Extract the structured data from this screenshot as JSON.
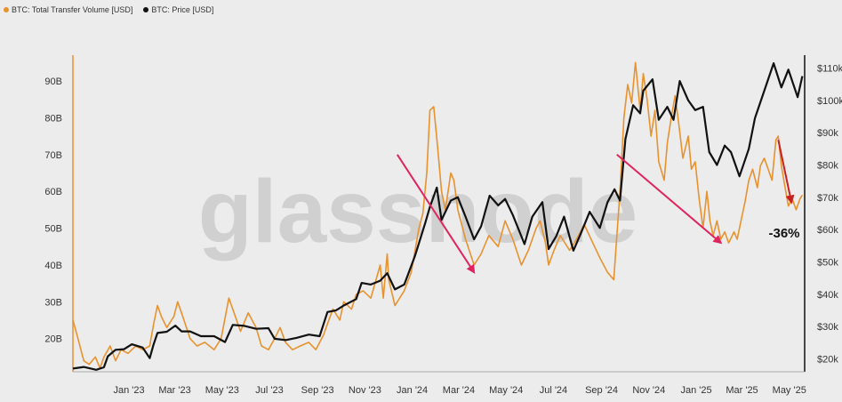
{
  "legend": {
    "volume_label": "BTC: Total Transfer Volume [USD]",
    "price_label": "BTC: Price [USD]"
  },
  "watermark": "glassnode",
  "annotation": "-36%",
  "colors": {
    "volume": "#e8922e",
    "price": "#111111",
    "arrow": "#e0245e",
    "arrow_dark": "#c8201e",
    "left_axis": "#e8922e",
    "right_axis": "#111111"
  },
  "chart_data": {
    "type": "line",
    "title": "",
    "grid": false,
    "legend_position": "top-left",
    "x_ticks": [
      "Jan '23",
      "Mar '23",
      "May '23",
      "Jul '23",
      "Sep '23",
      "Nov '23",
      "Jan '24",
      "Mar '24",
      "May '24",
      "Jul '24",
      "Sep '24",
      "Nov '24",
      "Jan '25",
      "Mar '25",
      "May '25"
    ],
    "x_range": [
      "2022-12-01",
      "2025-07-01"
    ],
    "y_left": {
      "unit": "USD",
      "ticks": [
        "20B",
        "30B",
        "40B",
        "50B",
        "60B",
        "70B",
        "80B",
        "90B"
      ],
      "tick_values": [
        20,
        30,
        40,
        50,
        60,
        70,
        80,
        90
      ],
      "range": [
        11,
        97
      ]
    },
    "y_right": {
      "unit": "USD",
      "ticks": [
        "$20k",
        "$30k",
        "$40k",
        "$50k",
        "$60k",
        "$70k",
        "$80k",
        "$90k",
        "$100k",
        "$110k"
      ],
      "tick_values": [
        20,
        30,
        40,
        50,
        60,
        70,
        80,
        90,
        100,
        110
      ],
      "range": [
        16,
        114
      ]
    },
    "series": [
      {
        "name": "BTC: Total Transfer Volume [USD]",
        "axis": "left",
        "unit": "billions",
        "points": [
          [
            "2022-12-01",
            25
          ],
          [
            "2022-12-05",
            22
          ],
          [
            "2022-12-10",
            18
          ],
          [
            "2022-12-15",
            14
          ],
          [
            "2022-12-22",
            13
          ],
          [
            "2022-12-30",
            15
          ],
          [
            "2023-01-05",
            12
          ],
          [
            "2023-01-10",
            15
          ],
          [
            "2023-01-18",
            18
          ],
          [
            "2023-01-25",
            14
          ],
          [
            "2023-02-01",
            17
          ],
          [
            "2023-02-10",
            16
          ],
          [
            "2023-02-20",
            18
          ],
          [
            "2023-03-01",
            17
          ],
          [
            "2023-03-10",
            18
          ],
          [
            "2023-03-15",
            24
          ],
          [
            "2023-03-20",
            29
          ],
          [
            "2023-03-25",
            26
          ],
          [
            "2023-04-01",
            23
          ],
          [
            "2023-04-10",
            26
          ],
          [
            "2023-04-15",
            30
          ],
          [
            "2023-04-20",
            27
          ],
          [
            "2023-05-01",
            20
          ],
          [
            "2023-05-10",
            18
          ],
          [
            "2023-05-20",
            19
          ],
          [
            "2023-06-01",
            17
          ],
          [
            "2023-06-10",
            20
          ],
          [
            "2023-06-20",
            31
          ],
          [
            "2023-06-25",
            28
          ],
          [
            "2023-07-05",
            22
          ],
          [
            "2023-07-15",
            27
          ],
          [
            "2023-07-25",
            23
          ],
          [
            "2023-08-01",
            18
          ],
          [
            "2023-08-10",
            17
          ],
          [
            "2023-08-18",
            20
          ],
          [
            "2023-08-25",
            23
          ],
          [
            "2023-09-01",
            19
          ],
          [
            "2023-09-10",
            17
          ],
          [
            "2023-09-20",
            18
          ],
          [
            "2023-10-01",
            19
          ],
          [
            "2023-10-10",
            17
          ],
          [
            "2023-10-20",
            21
          ],
          [
            "2023-10-25",
            24
          ],
          [
            "2023-11-01",
            28
          ],
          [
            "2023-11-10",
            25
          ],
          [
            "2023-11-15",
            30
          ],
          [
            "2023-11-25",
            28
          ],
          [
            "2023-12-01",
            32
          ],
          [
            "2023-12-10",
            33
          ],
          [
            "2023-12-20",
            31
          ],
          [
            "2024-01-01",
            40
          ],
          [
            "2024-01-05",
            31
          ],
          [
            "2024-01-10",
            43
          ],
          [
            "2024-01-12",
            36
          ],
          [
            "2024-01-20",
            29
          ],
          [
            "2024-02-01",
            33
          ],
          [
            "2024-02-10",
            38
          ],
          [
            "2024-02-20",
            50
          ],
          [
            "2024-02-25",
            54
          ],
          [
            "2024-03-01",
            65
          ],
          [
            "2024-03-05",
            82
          ],
          [
            "2024-03-10",
            83
          ],
          [
            "2024-03-15",
            72
          ],
          [
            "2024-03-20",
            60
          ],
          [
            "2024-03-25",
            55
          ],
          [
            "2024-04-01",
            65
          ],
          [
            "2024-04-05",
            63
          ],
          [
            "2024-04-10",
            55
          ],
          [
            "2024-04-20",
            47
          ],
          [
            "2024-05-01",
            40
          ],
          [
            "2024-05-10",
            43
          ],
          [
            "2024-05-20",
            48
          ],
          [
            "2024-06-01",
            45
          ],
          [
            "2024-06-10",
            52
          ],
          [
            "2024-06-20",
            47
          ],
          [
            "2024-07-01",
            40
          ],
          [
            "2024-07-10",
            44
          ],
          [
            "2024-07-20",
            50
          ],
          [
            "2024-07-25",
            52
          ],
          [
            "2024-08-01",
            46
          ],
          [
            "2024-08-05",
            40
          ],
          [
            "2024-08-12",
            44
          ],
          [
            "2024-08-20",
            48
          ],
          [
            "2024-09-01",
            44
          ],
          [
            "2024-09-10",
            47
          ],
          [
            "2024-09-20",
            51
          ],
          [
            "2024-10-01",
            46
          ],
          [
            "2024-10-10",
            42
          ],
          [
            "2024-10-20",
            38
          ],
          [
            "2024-10-28",
            36
          ],
          [
            "2024-11-05",
            60
          ],
          [
            "2024-11-10",
            80
          ],
          [
            "2024-11-15",
            89
          ],
          [
            "2024-11-20",
            84
          ],
          [
            "2024-11-25",
            95
          ],
          [
            "2024-12-01",
            82
          ],
          [
            "2024-12-05",
            92
          ],
          [
            "2024-12-10",
            85
          ],
          [
            "2024-12-15",
            75
          ],
          [
            "2024-12-20",
            82
          ],
          [
            "2024-12-25",
            68
          ],
          [
            "2025-01-01",
            63
          ],
          [
            "2025-01-05",
            73
          ],
          [
            "2025-01-10",
            80
          ],
          [
            "2025-01-15",
            86
          ],
          [
            "2025-01-20",
            78
          ],
          [
            "2025-01-25",
            69
          ],
          [
            "2025-02-01",
            75
          ],
          [
            "2025-02-05",
            66
          ],
          [
            "2025-02-10",
            68
          ],
          [
            "2025-02-15",
            58
          ],
          [
            "2025-02-20",
            50
          ],
          [
            "2025-02-25",
            60
          ],
          [
            "2025-03-01",
            52
          ],
          [
            "2025-03-05",
            48
          ],
          [
            "2025-03-10",
            52
          ],
          [
            "2025-03-15",
            47
          ],
          [
            "2025-03-20",
            49
          ],
          [
            "2025-03-25",
            46
          ],
          [
            "2025-04-01",
            49
          ],
          [
            "2025-04-05",
            47
          ],
          [
            "2025-04-10",
            52
          ],
          [
            "2025-04-15",
            57
          ],
          [
            "2025-04-20",
            63
          ],
          [
            "2025-04-25",
            66
          ],
          [
            "2025-05-01",
            61
          ],
          [
            "2025-05-05",
            67
          ],
          [
            "2025-05-10",
            69
          ],
          [
            "2025-05-15",
            66
          ],
          [
            "2025-05-20",
            63
          ],
          [
            "2025-05-25",
            74
          ],
          [
            "2025-05-28",
            75
          ],
          [
            "2025-06-01",
            67
          ],
          [
            "2025-06-05",
            62
          ],
          [
            "2025-06-10",
            56
          ],
          [
            "2025-06-15",
            58
          ],
          [
            "2025-06-20",
            55
          ],
          [
            "2025-06-25",
            58
          ],
          [
            "2025-06-28",
            59
          ]
        ]
      },
      {
        "name": "BTC: Price [USD]",
        "axis": "right",
        "unit": "thousands",
        "points": [
          [
            "2022-12-01",
            17
          ],
          [
            "2022-12-15",
            17.5
          ],
          [
            "2022-12-31",
            16.6
          ],
          [
            "2023-01-10",
            17.4
          ],
          [
            "2023-01-15",
            20.8
          ],
          [
            "2023-01-25",
            22.8
          ],
          [
            "2023-02-05",
            23
          ],
          [
            "2023-02-15",
            24.5
          ],
          [
            "2023-03-01",
            23.5
          ],
          [
            "2023-03-10",
            20.2
          ],
          [
            "2023-03-15",
            24.5
          ],
          [
            "2023-03-20",
            28
          ],
          [
            "2023-04-01",
            28.4
          ],
          [
            "2023-04-12",
            30.3
          ],
          [
            "2023-04-20",
            28.5
          ],
          [
            "2023-05-01",
            28.5
          ],
          [
            "2023-05-15",
            27
          ],
          [
            "2023-06-01",
            27
          ],
          [
            "2023-06-15",
            25.2
          ],
          [
            "2023-06-25",
            30.5
          ],
          [
            "2023-07-10",
            30.2
          ],
          [
            "2023-07-25",
            29.3
          ],
          [
            "2023-08-10",
            29.5
          ],
          [
            "2023-08-18",
            26.2
          ],
          [
            "2023-09-01",
            25.8
          ],
          [
            "2023-09-15",
            26.5
          ],
          [
            "2023-10-01",
            27.5
          ],
          [
            "2023-10-15",
            27
          ],
          [
            "2023-10-25",
            34.5
          ],
          [
            "2023-11-05",
            35
          ],
          [
            "2023-11-15",
            36.5
          ],
          [
            "2023-12-01",
            38.5
          ],
          [
            "2023-12-08",
            43.5
          ],
          [
            "2023-12-20",
            43
          ],
          [
            "2024-01-01",
            44.2
          ],
          [
            "2024-01-10",
            46.5
          ],
          [
            "2024-01-20",
            41.5
          ],
          [
            "2024-02-01",
            43
          ],
          [
            "2024-02-15",
            52
          ],
          [
            "2024-02-28",
            62
          ],
          [
            "2024-03-05",
            67
          ],
          [
            "2024-03-14",
            73
          ],
          [
            "2024-03-20",
            63
          ],
          [
            "2024-04-01",
            69
          ],
          [
            "2024-04-10",
            70
          ],
          [
            "2024-04-20",
            64
          ],
          [
            "2024-05-01",
            57
          ],
          [
            "2024-05-10",
            61
          ],
          [
            "2024-05-21",
            70.5
          ],
          [
            "2024-06-01",
            67.5
          ],
          [
            "2024-06-10",
            69.5
          ],
          [
            "2024-06-20",
            64.5
          ],
          [
            "2024-07-05",
            55.5
          ],
          [
            "2024-07-15",
            64
          ],
          [
            "2024-07-28",
            68.5
          ],
          [
            "2024-08-05",
            54
          ],
          [
            "2024-08-15",
            58
          ],
          [
            "2024-08-25",
            64
          ],
          [
            "2024-09-06",
            53.5
          ],
          [
            "2024-09-15",
            58.5
          ],
          [
            "2024-09-27",
            65.5
          ],
          [
            "2024-10-10",
            60.5
          ],
          [
            "2024-10-20",
            68.5
          ],
          [
            "2024-10-29",
            72.5
          ],
          [
            "2024-11-05",
            69
          ],
          [
            "2024-11-12",
            88
          ],
          [
            "2024-11-22",
            98.5
          ],
          [
            "2024-12-01",
            96
          ],
          [
            "2024-12-05",
            103
          ],
          [
            "2024-12-17",
            106.5
          ],
          [
            "2024-12-25",
            94
          ],
          [
            "2025-01-05",
            98
          ],
          [
            "2025-01-13",
            94
          ],
          [
            "2025-01-21",
            106
          ],
          [
            "2025-02-01",
            100
          ],
          [
            "2025-02-10",
            97
          ],
          [
            "2025-02-20",
            98
          ],
          [
            "2025-02-28",
            84
          ],
          [
            "2025-03-10",
            80
          ],
          [
            "2025-03-20",
            86
          ],
          [
            "2025-03-28",
            84
          ],
          [
            "2025-04-08",
            76.5
          ],
          [
            "2025-04-20",
            85
          ],
          [
            "2025-04-28",
            94.5
          ],
          [
            "2025-05-10",
            103
          ],
          [
            "2025-05-22",
            111.5
          ],
          [
            "2025-06-01",
            104
          ],
          [
            "2025-06-10",
            109.5
          ],
          [
            "2025-06-22",
            101
          ],
          [
            "2025-06-28",
            107.5
          ]
        ]
      }
    ],
    "arrows": [
      {
        "from": [
          "2024-01-23",
          70
        ],
        "to": [
          "2024-05-01",
          38
        ],
        "axis": "left"
      },
      {
        "from": [
          "2024-11-01",
          70
        ],
        "to": [
          "2025-03-15",
          46
        ],
        "axis": "left"
      },
      {
        "from": [
          "2025-05-28",
          74
        ],
        "to": [
          "2025-06-14",
          57
        ],
        "axis": "left"
      }
    ]
  }
}
